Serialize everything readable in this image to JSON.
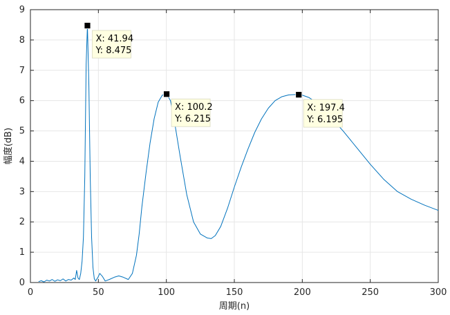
{
  "chart_data": {
    "type": "line",
    "title": "",
    "xlabel": "周期(n)",
    "ylabel": "幅度(dB)",
    "xlim": [
      0,
      300
    ],
    "ylim": [
      0,
      9
    ],
    "xticks": [
      0,
      50,
      100,
      150,
      200,
      250,
      300
    ],
    "yticks": [
      0,
      1,
      2,
      3,
      4,
      5,
      6,
      7,
      8,
      9
    ],
    "grid": true,
    "line_color": "#0072BD",
    "series": [
      {
        "x": [
          6,
          8,
          10,
          12,
          14,
          16,
          18,
          20,
          22,
          24,
          26,
          28,
          30,
          32,
          33,
          34,
          35,
          36,
          37,
          38,
          39,
          40,
          41,
          41.94,
          43,
          44,
          45,
          46,
          47,
          48,
          50,
          51,
          53,
          55,
          58,
          62,
          65,
          68,
          72,
          75,
          78,
          80,
          82,
          85,
          88,
          91,
          94,
          97,
          100.2,
          103,
          106,
          110,
          115,
          120,
          125,
          130,
          133,
          136,
          140,
          145,
          150,
          155,
          160,
          165,
          170,
          175,
          180,
          185,
          190,
          195,
          197.4,
          200,
          205,
          210,
          215,
          220,
          230,
          240,
          250,
          260,
          270,
          280,
          290,
          300
        ],
        "y": [
          0.03,
          0.06,
          0.02,
          0.08,
          0.05,
          0.1,
          0.04,
          0.09,
          0.06,
          0.12,
          0.05,
          0.1,
          0.08,
          0.15,
          0.1,
          0.4,
          0.15,
          0.1,
          0.3,
          0.7,
          1.5,
          3.5,
          7.2,
          8.475,
          6.5,
          3.5,
          1.5,
          0.5,
          0.12,
          0.05,
          0.2,
          0.3,
          0.2,
          0.05,
          0.1,
          0.18,
          0.22,
          0.18,
          0.1,
          0.3,
          0.9,
          1.6,
          2.5,
          3.6,
          4.6,
          5.4,
          5.95,
          6.18,
          6.215,
          6.0,
          5.3,
          4.2,
          2.9,
          2.0,
          1.6,
          1.47,
          1.45,
          1.55,
          1.85,
          2.45,
          3.15,
          3.8,
          4.4,
          4.95,
          5.4,
          5.75,
          6.0,
          6.13,
          6.19,
          6.2,
          6.195,
          6.18,
          6.1,
          5.95,
          5.75,
          5.5,
          5.0,
          4.45,
          3.9,
          3.4,
          3.0,
          2.75,
          2.55,
          2.38
        ]
      }
    ],
    "datatips": [
      {
        "x": 41.94,
        "y": 8.475,
        "label_x": "X: 41.94",
        "label_y": "Y: 8.475"
      },
      {
        "x": 100.2,
        "y": 6.215,
        "label_x": "X: 100.2",
        "label_y": "Y: 6.215"
      },
      {
        "x": 197.4,
        "y": 6.195,
        "label_x": "X: 197.4",
        "label_y": "Y: 6.195"
      }
    ]
  }
}
